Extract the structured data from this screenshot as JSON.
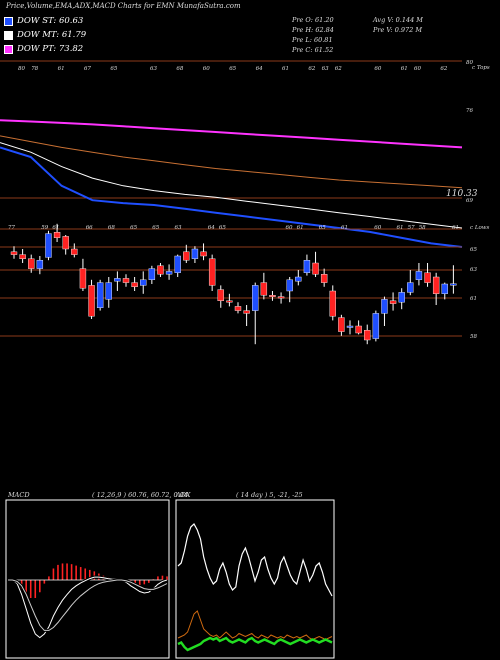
{
  "header": {
    "title": "Price,Volume,EMA,ADX,MACD Charts for EMN  MunafaSutra.com"
  },
  "legend": [
    {
      "label": "DOW ST: 60.63",
      "color": "#1f4fff"
    },
    {
      "label": "DOW MT: 61.79",
      "color": "#ffffff"
    },
    {
      "label": "DOW PT: 73.82",
      "color": "#ff33ff"
    }
  ],
  "quote": {
    "open": "Pre  O: 61.20",
    "high": "Pre  H: 62.84",
    "low": "Pre  L: 60.81",
    "close": "Pre  C: 61.52",
    "avg_volume": "Avg V: 0.144  M",
    "pre_volume": "Pre  V: 0.972  M"
  },
  "ema_panel": {
    "right_labels": [
      "80",
      "c Tops",
      "76",
      "110.33",
      "69"
    ],
    "top_tick_labels": [
      "80",
      "78",
      "",
      "61",
      "",
      "67",
      "",
      "65",
      "",
      "",
      "63",
      "",
      "68",
      "",
      "60",
      "",
      "65",
      "",
      "64",
      "",
      "61",
      "",
      "62",
      "63",
      "62",
      "",
      "",
      "60",
      "",
      "61",
      "60",
      "",
      "62"
    ]
  },
  "price_panel": {
    "right_labels": [
      "c Lows",
      "65",
      "63",
      "61",
      "58"
    ],
    "top_tick_labels": [
      "77",
      "",
      "",
      "59",
      "61",
      "",
      "",
      "66",
      "",
      "68",
      "",
      "65",
      "",
      "65",
      "",
      "63",
      "",
      "",
      "64",
      "65",
      "",
      "",
      "",
      "",
      "",
      "60",
      "61",
      "",
      "65",
      "",
      "61",
      "",
      "",
      "60",
      "",
      "61",
      "57",
      "58",
      "",
      "",
      "61"
    ]
  },
  "macd_panel": {
    "label": "MACD",
    "params": "( 12,26,9 ) 60.76,  60.72,  0.04"
  },
  "adx_panel": {
    "label": "ADX",
    "params": "( 14  day ) 5,  -21,  -25"
  },
  "colors": {
    "up": "#1f4fff",
    "down": "#ff2222",
    "ema_short": "#1f4fff",
    "ema_mid": "#ffffff",
    "ema_long": "#ff33ff",
    "grid": "#8b3a1a",
    "adx_di_plus": "#22dd22",
    "adx_di_minus": "#d06a10"
  },
  "chart_data": [
    {
      "type": "line",
      "panel": "ema",
      "series": [
        {
          "values": [
            73.82,
            73.7,
            73.55,
            73.4,
            73.2,
            73.0,
            72.8,
            72.6,
            72.4,
            72.2,
            72.0,
            71.8,
            71.6,
            71.4,
            71.2,
            71.0
          ]
        },
        {
          "values": [
            72.2,
            71.6,
            71.0,
            70.5,
            70.0,
            69.6,
            69.2,
            68.8,
            68.5,
            68.2,
            67.9,
            67.6,
            67.4,
            67.2,
            67.0,
            66.8
          ]
        },
        {
          "values": [
            71.5,
            70.5,
            69.0,
            67.8,
            67.0,
            66.5,
            66.1,
            65.8,
            65.4,
            65.0,
            64.6,
            64.2,
            63.8,
            63.4,
            63.0,
            62.6
          ]
        },
        {
          "values": [
            71.0,
            70.0,
            67.0,
            65.5,
            65.2,
            65.0,
            64.6,
            64.2,
            63.8,
            63.4,
            63.0,
            62.6,
            62.2,
            61.6,
            61.0,
            60.63
          ]
        }
      ]
    },
    {
      "type": "candlestick",
      "panel": "price",
      "candles": [
        [
          63.8,
          64.2,
          63.3,
          63.6
        ],
        [
          63.6,
          64.0,
          63.0,
          63.3
        ],
        [
          63.3,
          63.6,
          62.3,
          62.6
        ],
        [
          62.6,
          63.5,
          62.2,
          63.2
        ],
        [
          63.4,
          65.3,
          63.2,
          65.1
        ],
        [
          65.2,
          65.8,
          64.5,
          64.8
        ],
        [
          64.9,
          65.0,
          63.6,
          64.0
        ],
        [
          64.0,
          64.4,
          63.4,
          63.6
        ],
        [
          62.6,
          63.3,
          61.0,
          61.2
        ],
        [
          61.4,
          61.8,
          59.0,
          59.2
        ],
        [
          59.8,
          61.8,
          59.6,
          61.6
        ],
        [
          60.4,
          62.0,
          59.8,
          61.6
        ],
        [
          61.7,
          62.4,
          61.0,
          61.9
        ],
        [
          61.9,
          62.2,
          61.3,
          61.6
        ],
        [
          61.6,
          62.0,
          61.0,
          61.3
        ],
        [
          61.4,
          62.4,
          60.8,
          61.8
        ],
        [
          61.8,
          62.8,
          61.5,
          62.6
        ],
        [
          62.8,
          63.0,
          62.0,
          62.2
        ],
        [
          62.2,
          62.9,
          61.8,
          62.4
        ],
        [
          62.3,
          63.6,
          62.0,
          63.5
        ],
        [
          63.8,
          64.3,
          63.0,
          63.2
        ],
        [
          63.3,
          64.2,
          63.0,
          64.0
        ],
        [
          63.8,
          64.4,
          63.2,
          63.5
        ],
        [
          63.3,
          63.6,
          61.0,
          61.4
        ],
        [
          61.1,
          61.4,
          59.8,
          60.3
        ],
        [
          60.3,
          60.8,
          59.9,
          60.2
        ],
        [
          59.9,
          60.2,
          59.4,
          59.6
        ],
        [
          59.6,
          60.0,
          58.5,
          59.4
        ],
        [
          59.6,
          61.6,
          57.2,
          61.4
        ],
        [
          61.6,
          62.3,
          60.4,
          60.7
        ],
        [
          60.7,
          61.0,
          60.3,
          60.6
        ],
        [
          60.6,
          60.9,
          60.1,
          60.5
        ],
        [
          61.0,
          62.0,
          60.2,
          61.8
        ],
        [
          61.7,
          62.5,
          61.4,
          62.0
        ],
        [
          62.3,
          63.6,
          62.1,
          63.2
        ],
        [
          63.0,
          63.8,
          62.0,
          62.2
        ],
        [
          62.2,
          62.6,
          61.3,
          61.6
        ],
        [
          61.0,
          61.4,
          58.9,
          59.2
        ],
        [
          59.1,
          59.3,
          57.8,
          58.1
        ],
        [
          58.5,
          58.9,
          57.9,
          58.5
        ],
        [
          58.5,
          58.9,
          57.9,
          58.0
        ],
        [
          58.2,
          58.6,
          57.2,
          57.5
        ],
        [
          57.6,
          59.6,
          57.4,
          59.4
        ],
        [
          59.4,
          60.6,
          58.5,
          60.4
        ],
        [
          60.3,
          60.9,
          59.6,
          60.1
        ],
        [
          60.2,
          61.2,
          59.7,
          60.9
        ],
        [
          60.9,
          62.5,
          60.7,
          61.6
        ],
        [
          61.8,
          63.0,
          61.4,
          62.4
        ],
        [
          62.3,
          63.0,
          61.3,
          61.6
        ],
        [
          62.0,
          62.3,
          60.0,
          60.8
        ],
        [
          60.8,
          61.6,
          60.4,
          61.5
        ],
        [
          61.5,
          62.84,
          60.81,
          61.52
        ]
      ]
    },
    {
      "type": "line",
      "panel": "macd",
      "series": [
        {
          "values": [
            0,
            0,
            -0.5,
            -2,
            -4,
            -6,
            -7.5,
            -8,
            -7.5,
            -6.5,
            -5,
            -3.8,
            -2.8,
            -2,
            -1.3,
            -0.8,
            -0.4,
            -0.1,
            0.2,
            0.4,
            0.4,
            0.3,
            0.2,
            0.1,
            0.1,
            0.0,
            -0.3,
            -0.8,
            -1.2,
            -1.6,
            -1.8,
            -1.7,
            -1.2,
            -0.6,
            -0.2,
            0.0
          ]
        },
        {
          "values": [
            0,
            0,
            -0.2,
            -0.8,
            -2,
            -3.5,
            -5,
            -6.3,
            -7,
            -7,
            -6.6,
            -5.9,
            -5.1,
            -4.3,
            -3.5,
            -2.8,
            -2.2,
            -1.7,
            -1.2,
            -0.8,
            -0.5,
            -0.3,
            -0.2,
            -0.1,
            0.0,
            0.0,
            -0.1,
            -0.3,
            -0.6,
            -0.9,
            -1.2,
            -1.3,
            -1.3,
            -1.1,
            -0.8,
            -0.5
          ]
        }
      ],
      "histogram": [
        0,
        0,
        -0.3,
        -1.2,
        -2,
        -2.5,
        -2.5,
        -1.7,
        -0.5,
        0.5,
        1.6,
        2.1,
        2.3,
        2.3,
        2.2,
        2.0,
        1.8,
        1.6,
        1.4,
        1.2,
        0.9,
        0.6,
        0.4,
        0.2,
        0.1,
        0.0,
        -0.2,
        -0.5,
        -0.6,
        -0.7,
        -0.6,
        -0.4,
        0.1,
        0.5,
        0.6,
        0.5
      ]
    },
    {
      "type": "line",
      "panel": "adx",
      "series": [
        {
          "values": [
            60,
            62,
            70,
            80,
            86,
            88,
            84,
            78,
            66,
            58,
            52,
            48,
            50,
            58,
            62,
            56,
            48,
            44,
            46,
            60,
            68,
            72,
            66,
            58,
            50,
            56,
            64,
            66,
            58,
            52,
            48,
            52,
            62,
            66,
            60,
            54,
            50,
            48,
            56,
            64,
            58,
            50,
            54,
            60,
            62,
            56,
            48,
            44,
            40
          ]
        },
        {
          "values": [
            12,
            13,
            14,
            16,
            22,
            28,
            30,
            24,
            18,
            16,
            14,
            13,
            14,
            12,
            14,
            16,
            14,
            12,
            13,
            15,
            14,
            13,
            14,
            15,
            13,
            12,
            14,
            13,
            12,
            14,
            13,
            12,
            13,
            12,
            14,
            13,
            12,
            13,
            12,
            13,
            14,
            12,
            11,
            12,
            13,
            12,
            11,
            12,
            13
          ]
        },
        {
          "values": [
            8,
            9,
            6,
            4,
            5,
            6,
            7,
            8,
            10,
            11,
            12,
            11,
            12,
            10,
            11,
            12,
            10,
            9,
            10,
            11,
            10,
            9,
            11,
            12,
            10,
            9,
            10,
            11,
            10,
            9,
            8,
            10,
            11,
            10,
            9,
            8,
            9,
            10,
            11,
            10,
            9,
            10,
            11,
            10,
            9,
            10,
            11,
            10,
            9
          ]
        }
      ]
    }
  ]
}
